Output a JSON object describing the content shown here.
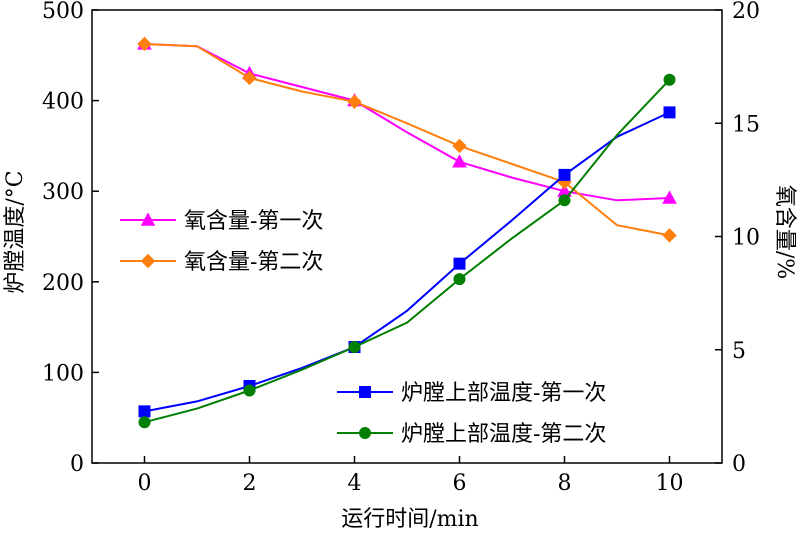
{
  "chart_data": {
    "type": "line",
    "xlabel": "运行时间/min",
    "ylabel_left": "炉膛温度/°C",
    "ylabel_right": "氧含量/%",
    "xlim": [
      -1,
      11
    ],
    "ylim_left": [
      0,
      500
    ],
    "ylim_right": [
      0,
      20
    ],
    "x_ticks": [
      "0",
      "2",
      "4",
      "6",
      "8",
      "10"
    ],
    "y_left_ticks": [
      "0",
      "100",
      "200",
      "300",
      "400",
      "500"
    ],
    "y_right_ticks": [
      "0",
      "5",
      "10",
      "15",
      "20"
    ],
    "grid": false,
    "series": [
      {
        "name": "氧含量-第一次",
        "axis": "right",
        "color": "#ff00ff",
        "marker": "triangle",
        "x": [
          0,
          1,
          2,
          3,
          4,
          5,
          6,
          7,
          8,
          9,
          10
        ],
        "y": [
          18.5,
          18.4,
          17.2,
          16.6,
          16.0,
          14.6,
          13.3,
          12.6,
          12.0,
          11.6,
          11.7
        ],
        "marker_x": [
          0,
          2,
          4,
          6,
          8,
          10
        ],
        "marker_y": [
          18.5,
          17.2,
          16.0,
          13.3,
          12.0,
          11.7
        ]
      },
      {
        "name": "氧含量-第二次",
        "axis": "right",
        "color": "#ff7f0e",
        "marker": "diamond",
        "x": [
          0,
          1,
          2,
          3,
          4,
          5,
          6,
          7,
          8,
          9,
          10
        ],
        "y": [
          18.5,
          18.4,
          17.0,
          16.4,
          15.95,
          15.0,
          14.0,
          13.2,
          12.4,
          10.5,
          10.05
        ],
        "marker_x": [
          0,
          2,
          4,
          6,
          8,
          10
        ],
        "marker_y": [
          18.5,
          17.0,
          15.95,
          14.0,
          12.4,
          10.05
        ]
      },
      {
        "name": "炉膛上部温度-第一次",
        "axis": "left",
        "color": "#0000ff",
        "marker": "square",
        "x": [
          0,
          1,
          2,
          3,
          4,
          5,
          6,
          7,
          8,
          9,
          10
        ],
        "y": [
          57,
          68,
          85,
          105,
          128,
          168,
          220,
          268,
          318,
          360,
          387
        ],
        "marker_x": [
          0,
          2,
          4,
          6,
          8,
          10
        ],
        "marker_y": [
          57,
          85,
          128,
          220,
          318,
          387
        ]
      },
      {
        "name": "炉膛上部温度-第二次",
        "axis": "left",
        "color": "#007f00",
        "marker": "circle",
        "x": [
          0,
          1,
          2,
          3,
          4,
          5,
          6,
          7,
          8,
          9,
          10
        ],
        "y": [
          45,
          60,
          80,
          103,
          128,
          155,
          203,
          248,
          290,
          362,
          423
        ],
        "marker_x": [
          0,
          2,
          4,
          6,
          8,
          10
        ],
        "marker_y": [
          45,
          80,
          128,
          203,
          290,
          423
        ]
      }
    ],
    "legend": [
      {
        "label": "氧含量-第一次",
        "series": 0
      },
      {
        "label": "氧含量-第二次",
        "series": 1
      },
      {
        "label": "炉膛上部温度-第一次",
        "series": 2
      },
      {
        "label": "炉膛上部温度-第二次",
        "series": 3
      }
    ]
  }
}
